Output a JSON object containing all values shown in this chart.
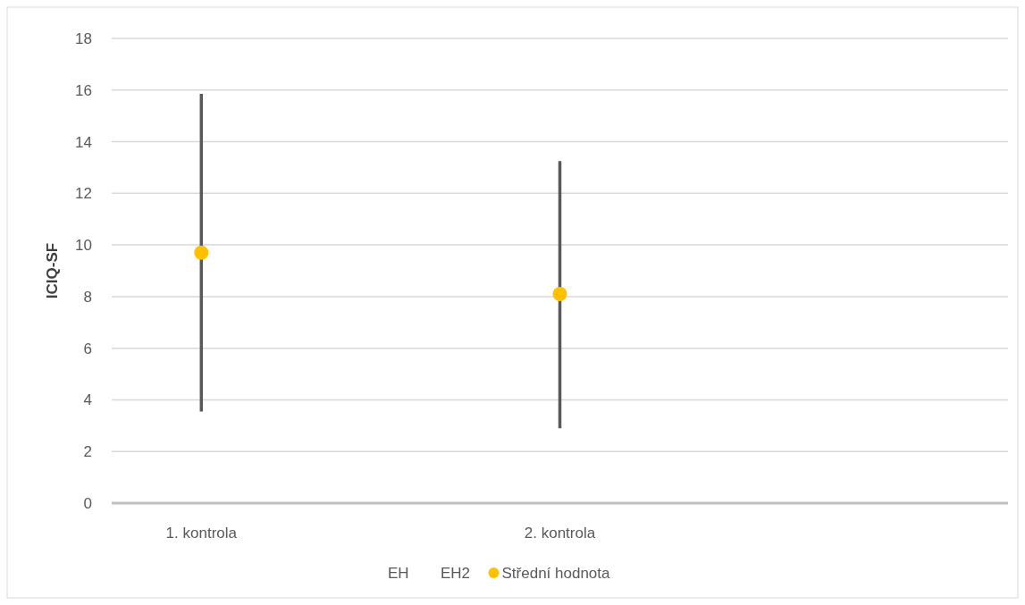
{
  "chart_data": {
    "type": "scatter",
    "ylabel": "ICIQ-SF",
    "categories": [
      "1. kontrola",
      null,
      "2. kontrola",
      null,
      null
    ],
    "ylim": [
      0,
      18
    ],
    "yticks": [
      0,
      2,
      4,
      6,
      8,
      10,
      12,
      14,
      16,
      18
    ],
    "grid": "y",
    "legend": "bottom",
    "marker": "circle",
    "series": [
      {
        "name": "EH",
        "values": [
          null,
          null,
          null,
          null,
          null
        ]
      },
      {
        "name": "EH2",
        "values": [
          null,
          null,
          null,
          null,
          null
        ]
      },
      {
        "name": "Střední hodnota",
        "color": "#ffc000",
        "values": [
          9.7,
          null,
          8.1,
          null,
          null
        ],
        "errors": [
          [
            3.55,
            15.85
          ],
          null,
          [
            2.9,
            13.25
          ],
          null,
          null
        ]
      }
    ]
  }
}
